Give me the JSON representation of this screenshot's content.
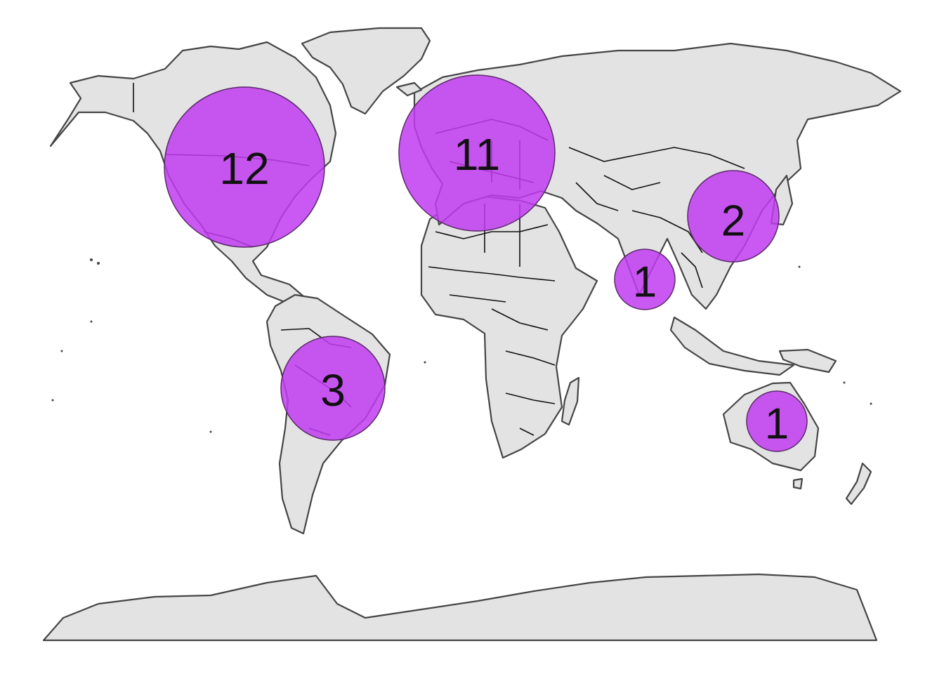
{
  "map": {
    "bubble_color": "#c13bf0",
    "land_color": "#e3e3e3",
    "ocean_color": "#ffffff",
    "regions": [
      {
        "id": "north-america",
        "count": 12,
        "label": "12"
      },
      {
        "id": "europe",
        "count": 11,
        "label": "11"
      },
      {
        "id": "east-asia",
        "count": 2,
        "label": "2"
      },
      {
        "id": "south-asia",
        "count": 1,
        "label": "1"
      },
      {
        "id": "south-america",
        "count": 3,
        "label": "3"
      },
      {
        "id": "australia",
        "count": 1,
        "label": "1"
      }
    ]
  }
}
